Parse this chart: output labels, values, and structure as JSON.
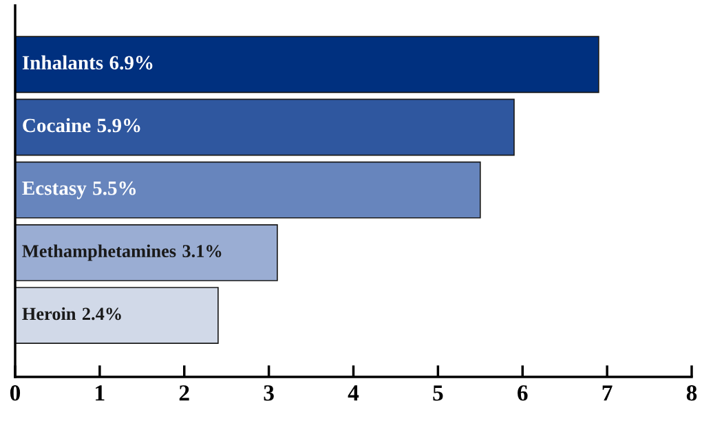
{
  "chart_data": {
    "type": "bar",
    "orientation": "horizontal",
    "categories": [
      "Inhalants",
      "Cocaine",
      "Ecstasy",
      "Methamphetamines",
      "Heroin"
    ],
    "values": [
      6.9,
      5.9,
      5.5,
      3.1,
      2.4
    ],
    "value_labels": [
      "6.9%",
      "5.9%",
      "5.5%",
      "3.1%",
      "2.4%"
    ],
    "colors": [
      "#00307f",
      "#2f579f",
      "#6785bd",
      "#9aadd3",
      "#d1d9e8"
    ],
    "xlim": [
      0,
      8
    ],
    "xticks": [
      0,
      1,
      2,
      3,
      4,
      5,
      6,
      7,
      8
    ],
    "grid": false,
    "tick_labels": "x"
  }
}
